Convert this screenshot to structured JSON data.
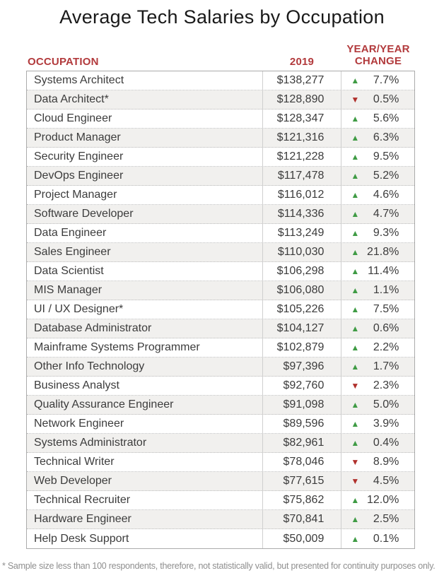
{
  "title": "Average Tech Salaries by Occupation",
  "footnote": "* Sample size less than 100 respondents, therefore, not statistically valid, but presented for continuity purposes only.",
  "icons": {
    "up": "▲",
    "down": "▼"
  },
  "colors": {
    "accent_red": "#b23a3c",
    "up_green": "#3f9b44",
    "down_red": "#b0302c",
    "stripe_gray": "#f1f0ee"
  },
  "table": {
    "headers": {
      "occupation": "OCCUPATION",
      "year": "2019",
      "change": "YEAR/YEAR\nCHANGE"
    }
  },
  "chart_data": {
    "type": "table",
    "title": "Average Tech Salaries by Occupation",
    "columns": [
      "Occupation",
      "2019",
      "Year/Year Change"
    ],
    "rows": [
      {
        "occupation": "Systems Architect",
        "salary": "$138,277",
        "direction": "up",
        "change": "7.7%"
      },
      {
        "occupation": "Data Architect*",
        "salary": "$128,890",
        "direction": "down",
        "change": "0.5%"
      },
      {
        "occupation": "Cloud Engineer",
        "salary": "$128,347",
        "direction": "up",
        "change": "5.6%"
      },
      {
        "occupation": "Product Manager",
        "salary": "$121,316",
        "direction": "up",
        "change": "6.3%"
      },
      {
        "occupation": "Security Engineer",
        "salary": "$121,228",
        "direction": "up",
        "change": "9.5%"
      },
      {
        "occupation": "DevOps Engineer",
        "salary": "$117,478",
        "direction": "up",
        "change": "5.2%"
      },
      {
        "occupation": "Project Manager",
        "salary": "$116,012",
        "direction": "up",
        "change": "4.6%"
      },
      {
        "occupation": "Software Developer",
        "salary": "$114,336",
        "direction": "up",
        "change": "4.7%"
      },
      {
        "occupation": "Data Engineer",
        "salary": "$113,249",
        "direction": "up",
        "change": "9.3%"
      },
      {
        "occupation": "Sales Engineer",
        "salary": "$110,030",
        "direction": "up",
        "change": "21.8%"
      },
      {
        "occupation": "Data Scientist",
        "salary": "$106,298",
        "direction": "up",
        "change": "11.4%"
      },
      {
        "occupation": "MIS Manager",
        "salary": "$106,080",
        "direction": "up",
        "change": "1.1%"
      },
      {
        "occupation": "UI / UX Designer*",
        "salary": "$105,226",
        "direction": "up",
        "change": "7.5%"
      },
      {
        "occupation": "Database Administrator",
        "salary": "$104,127",
        "direction": "up",
        "change": "0.6%"
      },
      {
        "occupation": "Mainframe Systems Programmer",
        "salary": "$102,879",
        "direction": "up",
        "change": "2.2%"
      },
      {
        "occupation": "Other Info Technology",
        "salary": "$97,396",
        "direction": "up",
        "change": "1.7%"
      },
      {
        "occupation": "Business Analyst",
        "salary": "$92,760",
        "direction": "down",
        "change": "2.3%"
      },
      {
        "occupation": "Quality Assurance Engineer",
        "salary": "$91,098",
        "direction": "up",
        "change": "5.0%"
      },
      {
        "occupation": "Network Engineer",
        "salary": "$89,596",
        "direction": "up",
        "change": "3.9%"
      },
      {
        "occupation": "Systems Administrator",
        "salary": "$82,961",
        "direction": "up",
        "change": "0.4%"
      },
      {
        "occupation": "Technical Writer",
        "salary": "$78,046",
        "direction": "down",
        "change": "8.9%"
      },
      {
        "occupation": "Web Developer",
        "salary": "$77,615",
        "direction": "down",
        "change": "4.5%"
      },
      {
        "occupation": "Technical Recruiter",
        "salary": "$75,862",
        "direction": "up",
        "change": "12.0%"
      },
      {
        "occupation": "Hardware Engineer",
        "salary": "$70,841",
        "direction": "up",
        "change": "2.5%"
      },
      {
        "occupation": "Help Desk Support",
        "salary": "$50,009",
        "direction": "up",
        "change": "0.1%"
      }
    ]
  }
}
